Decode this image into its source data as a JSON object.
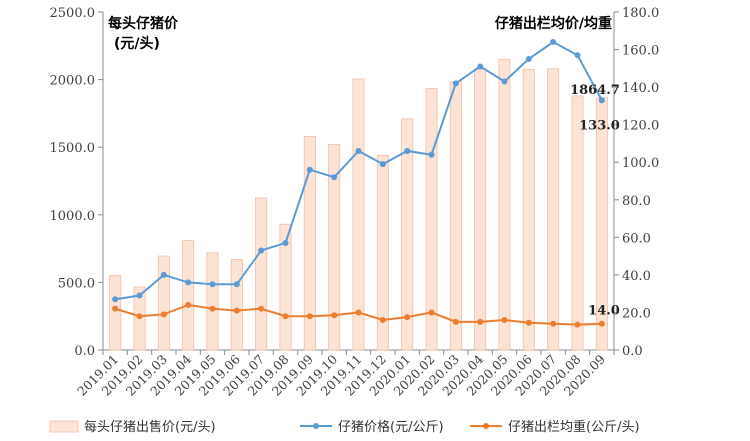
{
  "chart_data": {
    "type": "bar+line",
    "categories": [
      "2019.01",
      "2019.02",
      "2019.03",
      "2019.04",
      "2019.05",
      "2019.06",
      "2019.07",
      "2019.08",
      "2019.09",
      "2019.10",
      "2019.11",
      "2019.12",
      "2020.01",
      "2020.02",
      "2020.03",
      "2020.04",
      "2020.05",
      "2020.06",
      "2020.07",
      "2020.08",
      "2020.09"
    ],
    "left_axis": {
      "label_line1": "每头仔猪价",
      "label_line2": "(元/头)",
      "ylim": [
        0,
        2500
      ],
      "ticks": [
        "0.0",
        "500.0",
        "1000.0",
        "1500.0",
        "2000.0",
        "2500.0"
      ]
    },
    "right_axis": {
      "label": "仔猪出栏均价/均重",
      "ylim": [
        0,
        180
      ],
      "ticks": [
        "0.0",
        "20.0",
        "40.0",
        "60.0",
        "80.0",
        "100.0",
        "120.0",
        "140.0",
        "160.0",
        "180.0"
      ]
    },
    "series": [
      {
        "name": "每头仔猪出售价(元/头)",
        "kind": "bar",
        "axis": "left",
        "color": "#fbe3d6",
        "stroke": "#f4bfa3",
        "values": [
          550,
          465,
          695,
          810,
          720,
          670,
          1125,
          930,
          1580,
          1520,
          2005,
          1440,
          1710,
          1935,
          1985,
          2080,
          2150,
          2075,
          2080,
          1880,
          1864.7
        ],
        "last_label": "1864.7"
      },
      {
        "name": "仔猪价格(元/公斤)",
        "kind": "line",
        "axis": "right",
        "color": "#5b9bd5",
        "values": [
          27,
          29,
          40,
          36,
          35,
          35,
          53,
          57,
          96,
          92,
          106,
          99,
          106,
          104,
          142,
          151,
          143,
          155,
          164,
          157,
          133
        ],
        "last_label": "133.0"
      },
      {
        "name": "仔猪出栏均重(公斤/头)",
        "kind": "line",
        "axis": "right",
        "color": "#ed7d31",
        "values": [
          22,
          18,
          19,
          24,
          22,
          21,
          22,
          18,
          18,
          18.5,
          20,
          16,
          17.5,
          20,
          15,
          15,
          16,
          14.5,
          14,
          13.5,
          14
        ],
        "last_label": "14.0"
      }
    ],
    "grid": false,
    "legend_position": "bottom"
  }
}
